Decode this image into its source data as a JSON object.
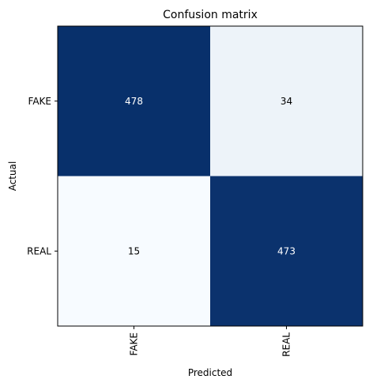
{
  "chart_data": {
    "type": "heatmap",
    "title": "Confusion matrix",
    "xlabel": "Predicted",
    "ylabel": "Actual",
    "x_categories": [
      "FAKE",
      "REAL"
    ],
    "y_categories": [
      "FAKE",
      "REAL"
    ],
    "values": [
      [
        478,
        34
      ],
      [
        15,
        473
      ]
    ],
    "colormap": "Blues",
    "colors": {
      "high": "#08306b",
      "low": "#f7fbff",
      "text_on_dark": "#ffffff",
      "text_on_light": "#000000"
    }
  }
}
